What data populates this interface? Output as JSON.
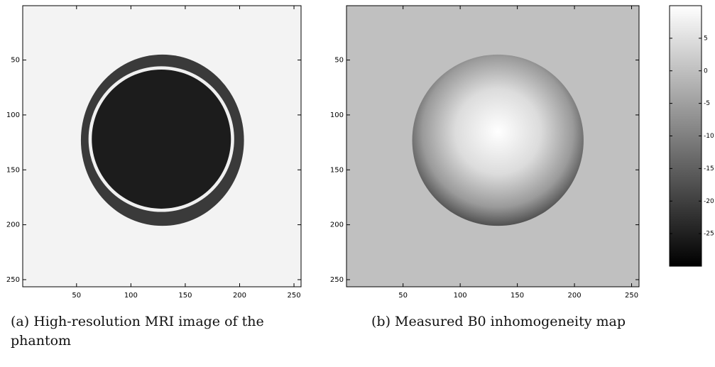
{
  "chart_data": [
    {
      "type": "image",
      "caption": "(a) High-resolution MRI image of the phantom",
      "xlim": [
        0.5,
        256.5
      ],
      "ylim": [
        0.5,
        256.5
      ],
      "y_reversed": true,
      "xticks": [
        50,
        100,
        150,
        200,
        250
      ],
      "yticks": [
        50,
        100,
        150,
        200,
        250
      ]
    },
    {
      "type": "image",
      "caption": "(b) Measured B0 inhomogeneity map",
      "xlim": [
        0.5,
        256.5
      ],
      "ylim": [
        0.5,
        256.5
      ],
      "y_reversed": true,
      "xticks": [
        50,
        100,
        150,
        200,
        250
      ],
      "yticks": [
        50,
        100,
        150,
        200,
        250
      ],
      "colorbar": {
        "clim": [
          -30,
          10
        ],
        "ticks": [
          5,
          0,
          -5,
          -10,
          -15,
          -20,
          -25
        ]
      }
    }
  ]
}
